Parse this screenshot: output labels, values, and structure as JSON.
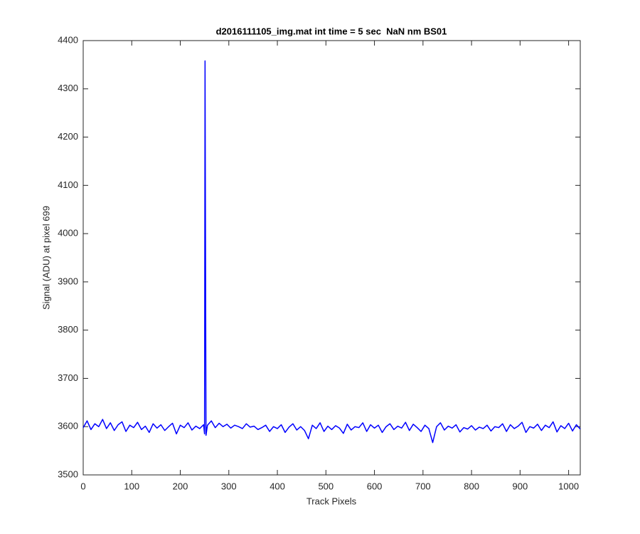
{
  "chart_data": {
    "type": "line",
    "title": "d2016111105_img.mat int time = 5 sec  NaN nm BS01",
    "xlabel": "Track Pixels",
    "ylabel": "Signal (ADU) at pixel 699",
    "x": [
      0,
      8,
      16,
      24,
      32,
      40,
      48,
      56,
      64,
      72,
      80,
      88,
      96,
      104,
      112,
      120,
      128,
      136,
      144,
      152,
      160,
      168,
      176,
      184,
      192,
      200,
      208,
      216,
      224,
      232,
      240,
      248,
      250,
      251,
      253,
      256,
      264,
      272,
      280,
      288,
      296,
      304,
      312,
      320,
      328,
      336,
      344,
      352,
      360,
      368,
      376,
      384,
      392,
      400,
      408,
      416,
      424,
      432,
      440,
      448,
      456,
      464,
      472,
      480,
      488,
      496,
      504,
      512,
      520,
      528,
      536,
      544,
      552,
      560,
      568,
      576,
      584,
      592,
      600,
      608,
      616,
      624,
      632,
      640,
      648,
      656,
      664,
      672,
      680,
      688,
      696,
      704,
      712,
      720,
      728,
      736,
      744,
      752,
      760,
      768,
      776,
      784,
      792,
      800,
      808,
      816,
      824,
      832,
      840,
      848,
      856,
      864,
      872,
      880,
      888,
      896,
      904,
      912,
      920,
      928,
      936,
      944,
      952,
      960,
      968,
      976,
      984,
      992,
      1000,
      1008,
      1016,
      1024
    ],
    "series": [
      {
        "name": "signal",
        "color": "#0000ff",
        "values": [
          3598,
          3612,
          3594,
          3606,
          3600,
          3615,
          3596,
          3608,
          3592,
          3604,
          3610,
          3590,
          3603,
          3598,
          3609,
          3594,
          3601,
          3588,
          3606,
          3597,
          3604,
          3592,
          3600,
          3607,
          3585,
          3603,
          3598,
          3608,
          3593,
          3601,
          3596,
          3604,
          3585,
          4358,
          3582,
          3603,
          3612,
          3598,
          3607,
          3600,
          3605,
          3597,
          3603,
          3600,
          3596,
          3606,
          3599,
          3601,
          3594,
          3598,
          3603,
          3590,
          3600,
          3596,
          3604,
          3588,
          3599,
          3606,
          3593,
          3600,
          3592,
          3575,
          3603,
          3596,
          3608,
          3590,
          3601,
          3594,
          3602,
          3597,
          3586,
          3605,
          3593,
          3600,
          3598,
          3608,
          3590,
          3604,
          3597,
          3603,
          3588,
          3600,
          3606,
          3594,
          3601,
          3597,
          3609,
          3592,
          3605,
          3598,
          3590,
          3603,
          3596,
          3567,
          3600,
          3608,
          3593,
          3601,
          3597,
          3604,
          3589,
          3598,
          3595,
          3602,
          3593,
          3599,
          3596,
          3603,
          3591,
          3600,
          3598,
          3606,
          3590,
          3604,
          3596,
          3601,
          3609,
          3588,
          3600,
          3597,
          3605,
          3592,
          3603,
          3598,
          3610,
          3589,
          3602,
          3596,
          3607,
          3591,
          3604,
          3595
        ]
      }
    ],
    "xlim": [
      0,
      1024
    ],
    "xticks": [
      0,
      100,
      200,
      300,
      400,
      500,
      600,
      700,
      800,
      900,
      1000
    ],
    "ylim": [
      3500,
      4400
    ],
    "yticks": [
      3500,
      3600,
      3700,
      3800,
      3900,
      4000,
      4100,
      4200,
      4300,
      4400
    ],
    "grid": false
  }
}
